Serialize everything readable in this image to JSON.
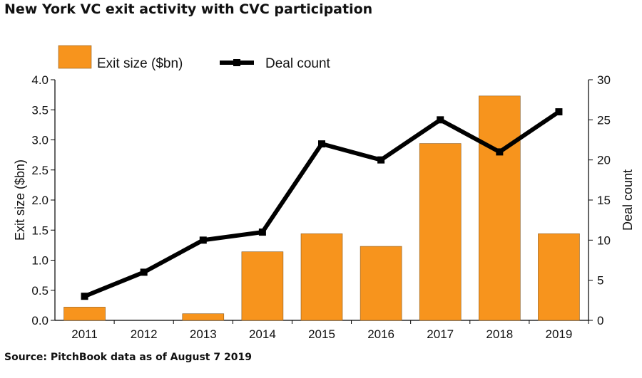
{
  "title": "New York VC exit activity with CVC participation",
  "source": "Source: PitchBook data as of August 7 2019",
  "colors": {
    "bar": "#F7941D",
    "bar_edge": "#8a5a1e",
    "line": "#000000"
  },
  "chart_data": {
    "type": "bar+line",
    "categories": [
      "2011",
      "2012",
      "2013",
      "2014",
      "2015",
      "2016",
      "2017",
      "2018",
      "2019"
    ],
    "series": [
      {
        "name": "Exit size ($bn)",
        "type": "bar",
        "axis": "left",
        "values": [
          0.22,
          0.0,
          0.11,
          1.14,
          1.44,
          1.23,
          2.94,
          3.73,
          1.44
        ]
      },
      {
        "name": "Deal count",
        "type": "line",
        "axis": "right",
        "values": [
          3,
          6,
          10,
          11,
          22,
          20,
          25,
          21,
          26
        ]
      }
    ],
    "ylabel": "Exit size ($bn)",
    "y2label": "Deal count",
    "ylim": [
      0,
      4.0
    ],
    "y2lim": [
      0,
      30
    ],
    "yticks": [
      "0.0",
      "0.5",
      "1.0",
      "1.5",
      "2.0",
      "2.5",
      "3.0",
      "3.5",
      "4.0"
    ],
    "y2ticks": [
      "0",
      "5",
      "10",
      "15",
      "20",
      "25",
      "30"
    ],
    "grid": false,
    "legend": "top"
  }
}
